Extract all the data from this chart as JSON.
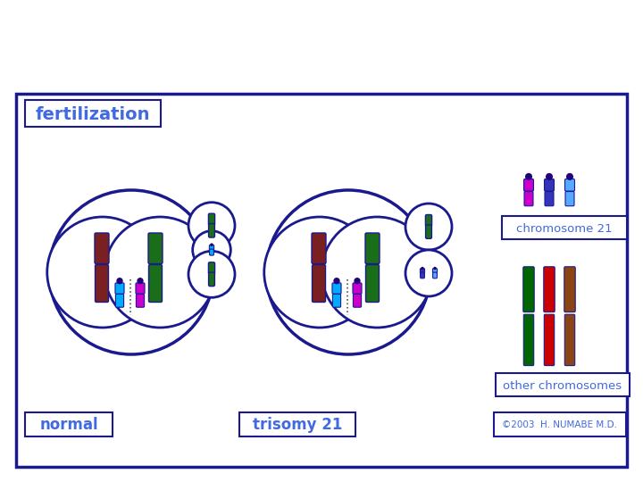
{
  "bg_color": "#ffffff",
  "border_color": "#1a1a8e",
  "text_color": "#4169e1",
  "title": "fertilization",
  "label_normal": "normal",
  "label_trisomy": "trisomy 21",
  "label_chr21": "chromosome 21",
  "label_other": "other chromosomes",
  "copyright": "©2003  H. NUMABE M.D.",
  "chr21_colors": [
    "#cc00cc",
    "#3333bb",
    "#55aaff"
  ],
  "other_chr_colors": [
    "#006600",
    "#cc0000",
    "#8b4513"
  ],
  "chr_large_colors": [
    "#7a2020",
    "#1a6e1a"
  ],
  "chr_small_colors_normal": [
    "#00aaff",
    "#cc00cc"
  ],
  "chr_small_colors_trisomy": [
    "#00aaff",
    "#cc00cc"
  ],
  "dot_color": "#22007e"
}
